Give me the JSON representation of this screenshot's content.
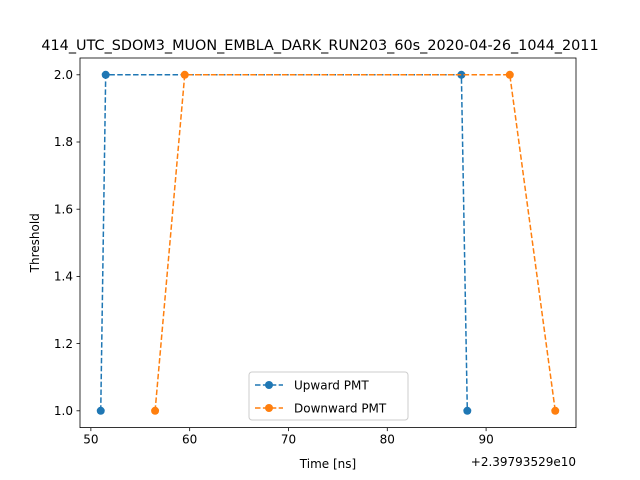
{
  "chart_data": {
    "type": "line",
    "title": "414_UTC_SDOM3_MUON_EMBLA_DARK_RUN203_60s_2020-04-26_1044_2011",
    "xlabel": "Time [ns]",
    "ylabel": "Threshold",
    "x_offset_label": "+2.39793529e10",
    "xlim": [
      48.9,
      99.1
    ],
    "ylim": [
      0.95,
      2.05
    ],
    "x_ticks": [
      50,
      60,
      70,
      80,
      90
    ],
    "x_tick_labels": [
      "50",
      "60",
      "70",
      "80",
      "90"
    ],
    "y_ticks": [
      1.0,
      1.2,
      1.4,
      1.6,
      1.8,
      2.0
    ],
    "y_tick_labels": [
      "1.0",
      "1.2",
      "1.4",
      "1.6",
      "1.8",
      "2.0"
    ],
    "grid": false,
    "legend_position": "lower center",
    "series": [
      {
        "name": "Upward PMT",
        "color": "#1f77b4",
        "x": [
          51.0,
          51.5,
          87.5,
          88.1
        ],
        "y": [
          1.0,
          2.0,
          2.0,
          1.0
        ]
      },
      {
        "name": "Downward PMT",
        "color": "#ff7f0e",
        "x": [
          56.5,
          59.5,
          92.4,
          97.0
        ],
        "y": [
          1.0,
          2.0,
          2.0,
          1.0
        ]
      }
    ]
  }
}
